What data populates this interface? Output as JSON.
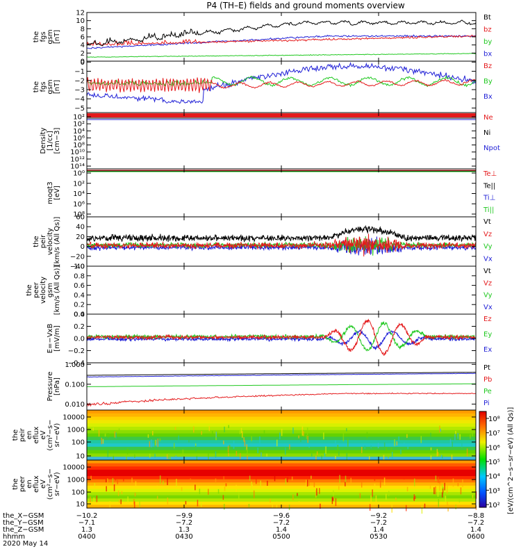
{
  "title": "P4 (TH–E) fields and ground moments overview",
  "colors": {
    "black": "#000000",
    "red": "#e41a1c",
    "green": "#1fc81f",
    "blue": "#1f1fd6"
  },
  "chart_data": [
    {
      "type": "line",
      "name": "fgs",
      "ylabel": [
        "the",
        "fgs",
        "gsm",
        "[nT]"
      ],
      "ylim": [
        0,
        12
      ],
      "ticks": [
        "0",
        "2",
        "4",
        "6",
        "8",
        "10",
        "12"
      ],
      "tickvals": [
        0,
        2,
        4,
        6,
        8,
        10,
        12
      ],
      "legend": [
        {
          "name": "Bt",
          "color": "#000000"
        },
        {
          "name": "bz",
          "color": "#e41a1c"
        },
        {
          "name": "by",
          "color": "#1fc81f"
        },
        {
          "name": "bx",
          "color": "#1f1fd6"
        }
      ]
    },
    {
      "type": "line",
      "name": "fgs_b",
      "ylabel": [
        "the",
        "fgs",
        "gsm",
        "[nT]"
      ],
      "ylim": [
        -5.5,
        0.1
      ],
      "ticks": [
        "0",
        "−1",
        "−2",
        "−3",
        "−4",
        "−5"
      ],
      "tickvals": [
        0,
        -1,
        -2,
        -3,
        -4,
        -5
      ],
      "legend": [
        {
          "name": "Bz",
          "color": "#e41a1c"
        },
        {
          "name": "By",
          "color": "#1fc81f"
        },
        {
          "name": "Bx",
          "color": "#1f1fd6"
        }
      ]
    },
    {
      "type": "line",
      "name": "density",
      "ylabel": [
        "Density",
        "[1/cc]",
        "[cm−3]"
      ],
      "ylim": [
        -13,
        0
      ],
      "ticks": [
        "10²",
        "10²",
        "10⁴",
        "10⁶",
        "10⁸",
        "10¹⁰",
        "10¹²",
        "10¹⁴"
      ],
      "legend": [
        {
          "name": "Ne",
          "color": "#e41a1c"
        },
        {
          "name": "Ni",
          "color": "#000000"
        },
        {
          "name": "Npot",
          "color": "#1f1fd6"
        }
      ]
    },
    {
      "type": "line",
      "name": "temperature",
      "ylabel": [
        "moqt3",
        "[eV]"
      ],
      "ylim": [
        -8,
        0
      ],
      "ticks": [
        "10⁰",
        "10²",
        "10⁴",
        "10⁶",
        "10⁸"
      ],
      "legend": [
        {
          "name": "Te⊥",
          "color": "#e41a1c"
        },
        {
          "name": "Te||",
          "color": "#000000"
        },
        {
          "name": "Ti⊥",
          "color": "#1f1fd6"
        },
        {
          "name": "Ti||",
          "color": "#1fc81f"
        }
      ]
    },
    {
      "type": "line",
      "name": "peir_velocity",
      "ylabel": [
        "the",
        "peir",
        "velocity",
        "[km/s (All Qs)]"
      ],
      "ylim": [
        -40,
        60
      ],
      "ticks": [
        "60",
        "40",
        "20",
        "0",
        "−20",
        "−40"
      ],
      "tickvals": [
        60,
        40,
        20,
        0,
        -20,
        -40
      ],
      "legend": [
        {
          "name": "Vt",
          "color": "#000000"
        },
        {
          "name": "Vz",
          "color": "#e41a1c"
        },
        {
          "name": "Vy",
          "color": "#1fc81f"
        },
        {
          "name": "Vx",
          "color": "#1f1fd6"
        }
      ]
    },
    {
      "type": "line",
      "name": "peer_velocity",
      "ylabel": [
        "the",
        "peer",
        "velocity",
        "gsm",
        "[km/s (All Qs)]"
      ],
      "ylim": [
        0,
        1
      ],
      "ticks": [
        "1.0",
        "0.8",
        "0.6",
        "0.4",
        "0.2",
        "0.0"
      ],
      "tickvals": [
        1,
        0.8,
        0.6,
        0.4,
        0.2,
        0
      ],
      "legend": [
        {
          "name": "Vt",
          "color": "#000000"
        },
        {
          "name": "Vz",
          "color": "#e41a1c"
        },
        {
          "name": "Vy",
          "color": "#1fc81f"
        },
        {
          "name": "Vx",
          "color": "#1f1fd6"
        }
      ]
    },
    {
      "type": "line",
      "name": "efield",
      "ylabel": [
        "E=−VxB",
        "[mV/m]"
      ],
      "ylim": [
        -0.4,
        0.4
      ],
      "ticks": [
        "0.4",
        "0.2",
        "0.0",
        "−0.2",
        "−0.4"
      ],
      "tickvals": [
        0.4,
        0.2,
        0,
        -0.2,
        -0.4
      ],
      "legend": [
        {
          "name": "Ez",
          "color": "#e41a1c"
        },
        {
          "name": "Ey",
          "color": "#1fc81f"
        },
        {
          "name": "Ex",
          "color": "#1f1fd6"
        }
      ]
    },
    {
      "type": "line",
      "name": "pressure",
      "ylabel": [
        "Pressure",
        "[nPa]"
      ],
      "ylim": [
        0.005,
        1.2
      ],
      "ticks": [
        "1.000",
        "0.100",
        "0.010"
      ],
      "tickvals": [
        1,
        0.1,
        0.01
      ],
      "legend": [
        {
          "name": "Pt",
          "color": "#000000"
        },
        {
          "name": "Pb",
          "color": "#e41a1c"
        },
        {
          "name": "Pe",
          "color": "#1fc81f"
        },
        {
          "name": "Pi",
          "color": "#1f1fd6"
        }
      ]
    },
    {
      "type": "heatmap",
      "name": "peir_eflux",
      "ylabel": [
        "the",
        "peir",
        "en",
        "eflux",
        "eV",
        "(cm²−s−",
        "sr−eV)"
      ],
      "ticks": [
        "10000",
        "1000",
        "100",
        "10"
      ],
      "tickvals": [
        10000,
        1000,
        100,
        10
      ]
    },
    {
      "type": "heatmap",
      "name": "peer_eflux",
      "ylabel": [
        "the",
        "peer",
        "en",
        "eflux",
        "eV",
        "(cm²−s−",
        "sr−eV)"
      ],
      "ticks": [
        "10000",
        "1000",
        "100",
        "10"
      ],
      "tickvals": [
        10000,
        1000,
        100,
        10
      ]
    }
  ],
  "colorbar": {
    "label": "[eV/(cm^2−s−sr−eV) (All Qs)]",
    "ticks": [
      "10⁸",
      "10⁷",
      "10⁶",
      "10⁵",
      "10⁴",
      "10³",
      "10²"
    ]
  },
  "xaxis": {
    "rows": [
      {
        "label": "the_X−GSM",
        "values": [
          "−10.2",
          "−9.9",
          "−9.6",
          "−9.2",
          "−8.8"
        ]
      },
      {
        "label": "the_Y−GSM",
        "values": [
          "−7.1",
          "−7.2",
          "−7.2",
          "−7.2",
          "−7.2"
        ]
      },
      {
        "label": "the_Z−GSM",
        "values": [
          "1.3",
          "1.3",
          "1.4",
          "1.4",
          "1.4"
        ]
      },
      {
        "label": "hhmm",
        "values": [
          "0400",
          "0430",
          "0500",
          "0530",
          "0600"
        ]
      }
    ],
    "date": "2020 May 14"
  }
}
